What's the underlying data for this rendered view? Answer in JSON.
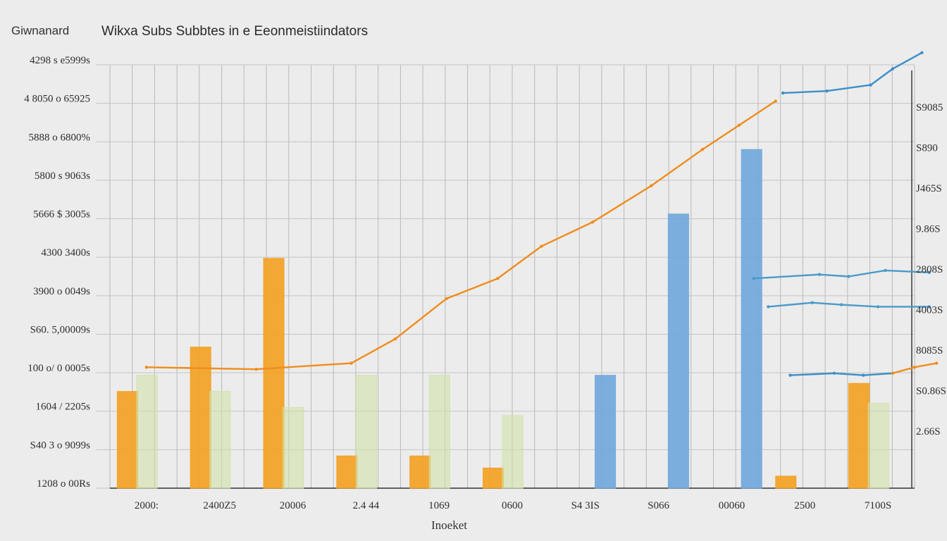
{
  "chart_data": {
    "type": "bar",
    "title_left": "Giwnanard",
    "title": "Wikxa Subs Subbtes in e Eeonmeistiindators",
    "xlabel": "Inoeket",
    "ylabel_left": [
      "4298 s e5999s",
      "4 8050 o 65925",
      "5888 o 6800%",
      "5800 s 9063s",
      "5666 $ 3005s",
      "4300 3400s",
      "3900 o 0049s",
      "S60. 5,00009s",
      "100 o/ 0 0005s",
      "1604 / 2205s",
      "S40 3 o 9099s",
      "1208 o 00Rs"
    ],
    "ylabel_right": [
      "S9085",
      "S890",
      "J465S",
      "9.86S",
      "2808S",
      "4003S",
      "8085S",
      "S0.86S",
      "2.66S"
    ],
    "categories": [
      "2000:",
      "2400Z5",
      "20006",
      "2.4 44",
      "1069",
      "0600",
      "S4 3IS",
      "S066",
      "00060",
      "2500",
      "7100S"
    ],
    "ylim": [
      0,
      105
    ],
    "grid": true,
    "series": [
      {
        "color": "#f4a020",
        "values": [
          24,
          35,
          57,
          8,
          8,
          5,
          0,
          0,
          0,
          3,
          26
        ]
      },
      {
        "color": "#cfe1a5",
        "values": [
          28,
          24,
          20,
          28,
          28,
          18,
          0,
          0,
          0,
          0,
          21
        ]
      },
      {
        "color": "#6fa7dc",
        "values": [
          0,
          0,
          0,
          0,
          0,
          0,
          28,
          68,
          84,
          0,
          0
        ]
      }
    ],
    "lines": [
      {
        "color": "#f08c1c",
        "points": [
          [
            0,
            30
          ],
          [
            1.5,
            29.5
          ],
          [
            2.8,
            31
          ],
          [
            3.4,
            37
          ],
          [
            4.1,
            47
          ],
          [
            4.8,
            52
          ],
          [
            5.4,
            60
          ],
          [
            6.1,
            66
          ],
          [
            6.9,
            75
          ],
          [
            7.6,
            84
          ],
          [
            8.1,
            90
          ],
          [
            8.6,
            96
          ]
        ]
      },
      {
        "color": "#3d8ec9",
        "points": [
          [
            8.7,
            98
          ],
          [
            9.3,
            98.5
          ],
          [
            9.9,
            100
          ],
          [
            10.2,
            104
          ],
          [
            10.6,
            108
          ]
        ]
      },
      {
        "color": "#4a9ac9",
        "points": [
          [
            8.3,
            52
          ],
          [
            9.2,
            53
          ],
          [
            9.6,
            52.5
          ],
          [
            10.1,
            54
          ],
          [
            10.7,
            53.5
          ]
        ]
      },
      {
        "color": "#4a9ac9",
        "points": [
          [
            8.5,
            45
          ],
          [
            9.1,
            46
          ],
          [
            9.5,
            45.5
          ],
          [
            10.0,
            45
          ],
          [
            10.7,
            45
          ]
        ]
      },
      {
        "color": "#3d8ec9",
        "points": [
          [
            8.8,
            28
          ],
          [
            9.4,
            28.5
          ],
          [
            9.8,
            28
          ],
          [
            10.2,
            28.5
          ]
        ]
      },
      {
        "color": "#f08c1c",
        "points": [
          [
            10.2,
            28.5
          ],
          [
            10.5,
            30
          ],
          [
            10.8,
            31
          ]
        ]
      }
    ]
  }
}
